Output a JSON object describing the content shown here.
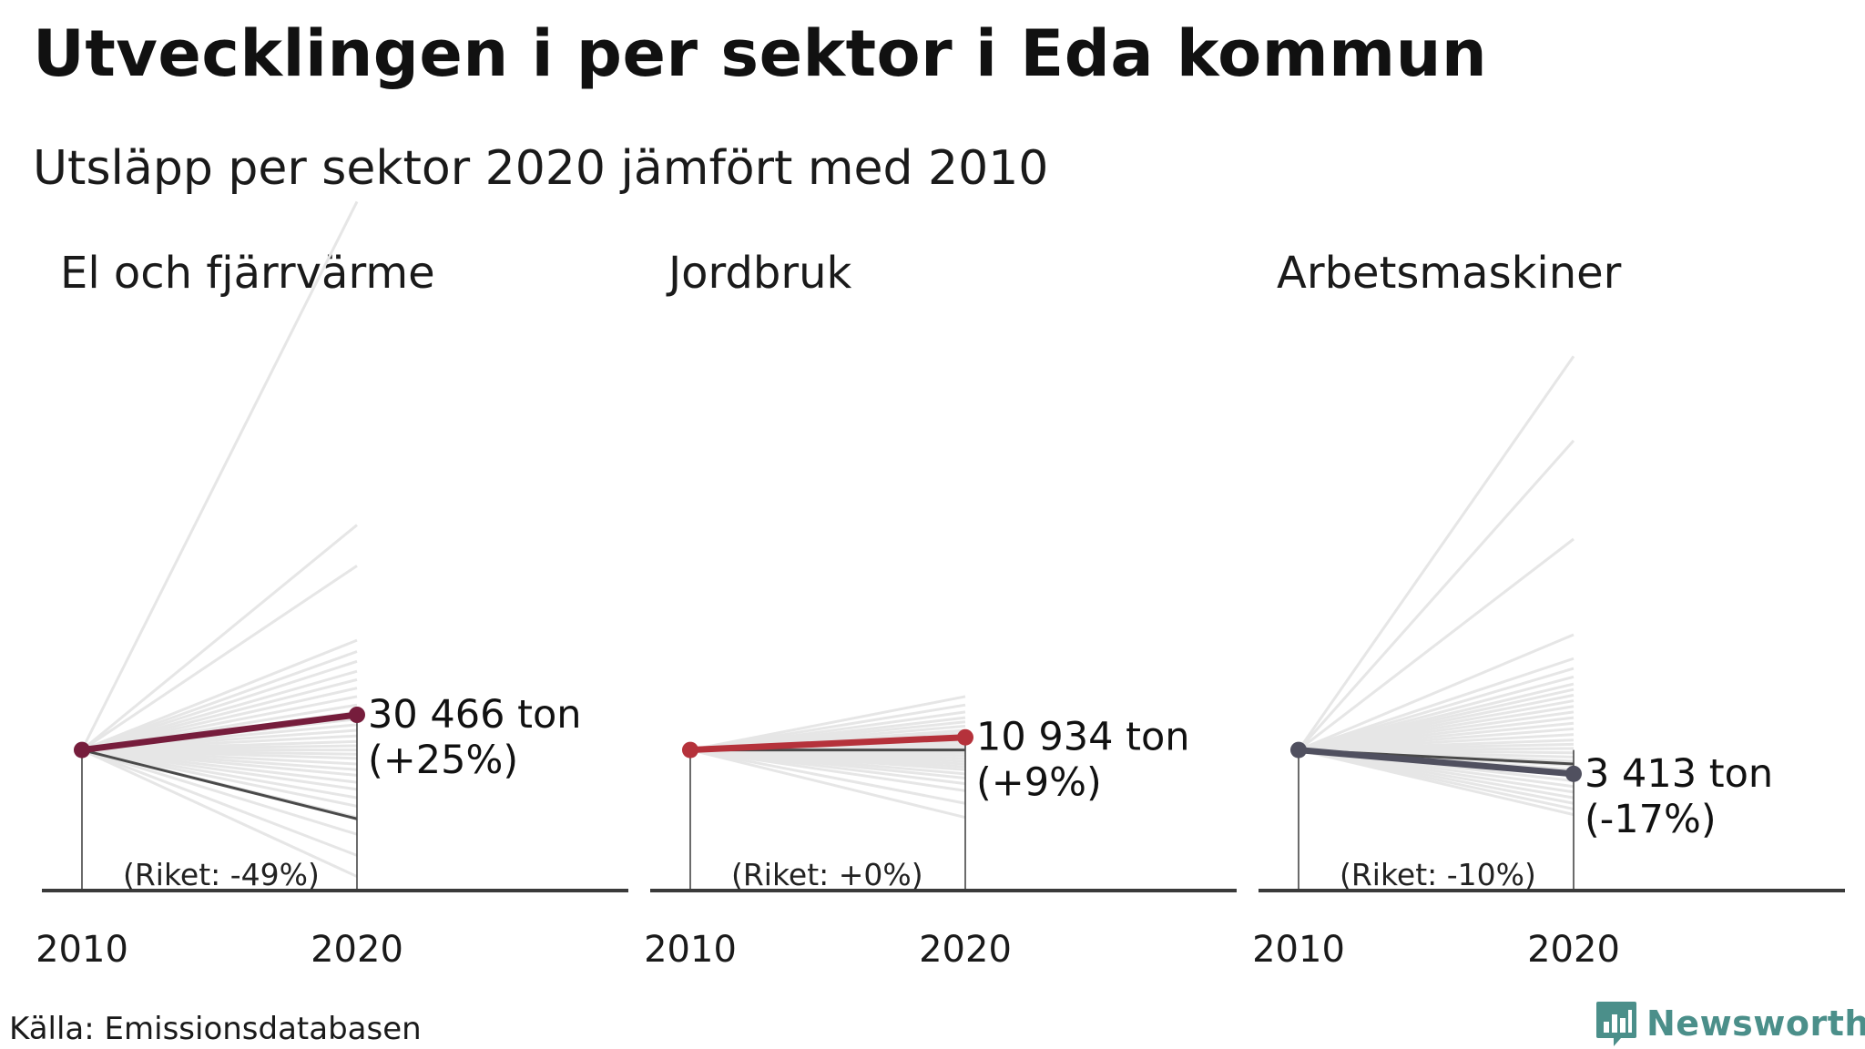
{
  "title": "Utvecklingen i per sektor i Eda kommun",
  "subtitle": "Utsläpp per sektor 2020 jämfört med 2010",
  "source": "Källa: Emissionsdatabasen",
  "logo_text": "Newsworthy",
  "colors": {
    "axis": "#3a3a3a",
    "background_lines": "#e6e6e6",
    "riket_line": "#4a4a4a",
    "logo": "#4b8f8a"
  },
  "chart_data": [
    {
      "type": "line",
      "title": "El och fjärrvärme",
      "x": [
        "2010",
        "2020"
      ],
      "index_2010": 100,
      "highlight": {
        "values": [
          100,
          125
        ],
        "color": "#761d3c",
        "value_label": "30 466 ton",
        "change_label": "(+25%)"
      },
      "riket": {
        "values": [
          100,
          51
        ],
        "label": "(Riket: -49%)"
      },
      "other_municipalities_2020": [
        490,
        260,
        231,
        178,
        170,
        163,
        156,
        150,
        144,
        138,
        132,
        127,
        122,
        118,
        114,
        110,
        106,
        103,
        100,
        97,
        94,
        90,
        86,
        82,
        77,
        72,
        66,
        60,
        52,
        40,
        25,
        10
      ]
    },
    {
      "type": "line",
      "title": "Jordbruk",
      "x": [
        "2010",
        "2020"
      ],
      "index_2010": 100,
      "highlight": {
        "values": [
          100,
          109
        ],
        "color": "#b5323b",
        "value_label": "10 934 ton",
        "change_label": "(+9%)"
      },
      "riket": {
        "values": [
          100,
          100
        ],
        "label": "(Riket: +0%)"
      },
      "other_municipalities_2020": [
        138,
        132,
        127,
        123,
        120,
        117,
        114,
        112,
        110,
        108,
        106,
        104,
        102,
        100,
        98,
        96,
        94,
        92,
        90,
        88,
        86,
        83,
        80,
        76,
        71,
        62,
        52
      ]
    },
    {
      "type": "line",
      "title": "Arbetsmaskiner",
      "x": [
        "2010",
        "2020"
      ],
      "index_2010": 100,
      "highlight": {
        "values": [
          100,
          83
        ],
        "color": "#50505f",
        "value_label": "3 413 ton",
        "change_label": "(-17%)"
      },
      "riket": {
        "values": [
          100,
          90
        ],
        "label": "(Riket: -10%)"
      },
      "other_municipalities_2020": [
        380,
        320,
        250,
        182,
        165,
        158,
        152,
        147,
        143,
        139,
        135,
        131,
        127,
        123,
        119,
        115,
        111,
        107,
        104,
        101,
        98,
        95,
        92,
        89,
        86,
        82,
        78,
        74,
        70,
        66,
        62,
        58,
        54
      ]
    }
  ]
}
